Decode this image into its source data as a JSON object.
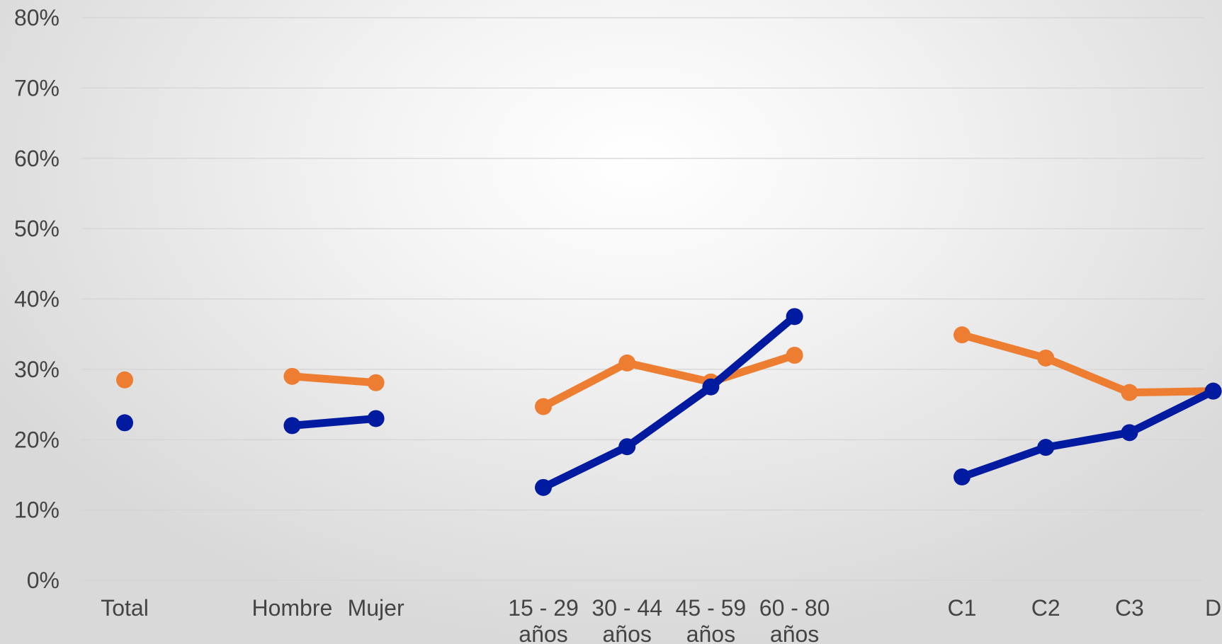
{
  "chart_data": {
    "type": "line",
    "categories": [
      [
        "Total"
      ],
      [
        ""
      ],
      [
        "Hombre"
      ],
      [
        "Mujer"
      ],
      [
        ""
      ],
      [
        "15 - 29",
        "años"
      ],
      [
        "30 - 44",
        "años"
      ],
      [
        "45 - 59",
        "años"
      ],
      [
        "60 - 80",
        "años"
      ],
      [
        ""
      ],
      [
        "C1"
      ],
      [
        "C2"
      ],
      [
        "C3"
      ],
      [
        "D"
      ]
    ],
    "series": [
      {
        "color": "#ed7d31",
        "values": [
          28.5,
          null,
          29.0,
          28.1,
          null,
          24.7,
          30.9,
          28.2,
          32.0,
          null,
          34.9,
          31.6,
          26.7,
          26.9
        ]
      },
      {
        "color": "#001aa0",
        "values": [
          22.4,
          null,
          22.0,
          23.0,
          null,
          13.2,
          19.0,
          27.5,
          37.5,
          null,
          14.7,
          18.9,
          21.0,
          26.9
        ]
      }
    ],
    "ylim": [
      0,
      80
    ],
    "yticks": [
      "0%",
      "10%",
      "20%",
      "30%",
      "40%",
      "50%",
      "60%",
      "70%",
      "80%"
    ],
    "grid": true,
    "legend": "none"
  }
}
